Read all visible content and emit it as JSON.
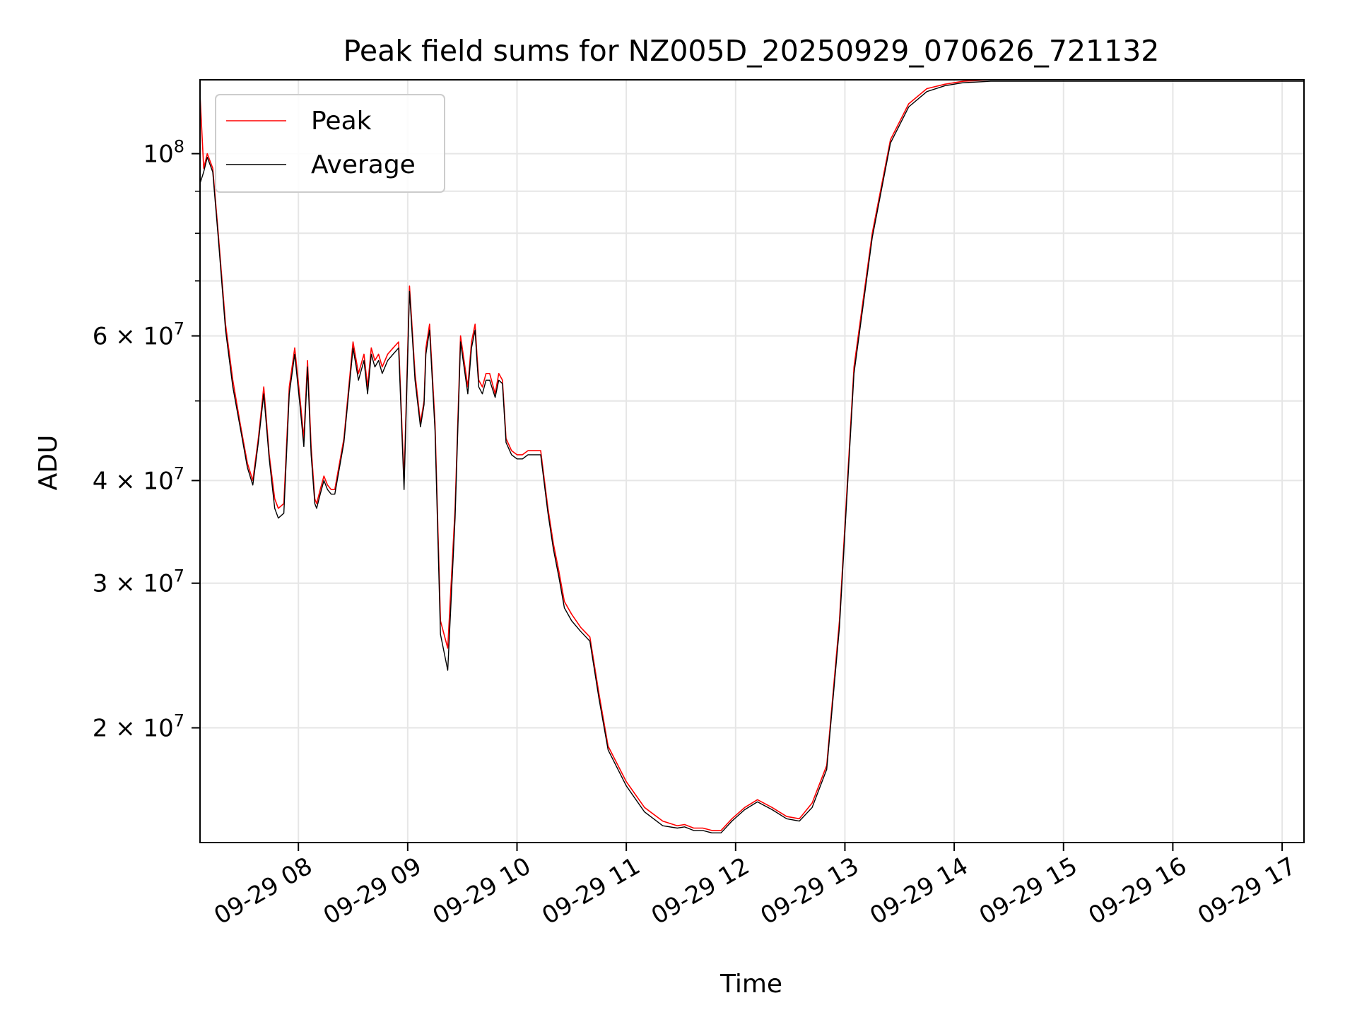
{
  "chart_data": {
    "type": "line",
    "title": "Peak field sums for NZ005D_20250929_070626_721132",
    "xlabel": "Time",
    "ylabel": "ADU",
    "x_scale": "time",
    "y_scale": "log",
    "xlim": [
      "2025-09-29 07:06",
      "2025-09-29 17:12"
    ],
    "ylim": [
      14500000,
      123000000
    ],
    "grid": true,
    "legend_position": "upper left",
    "x_ticks": [
      {
        "value": "2025-09-29 08:00",
        "label": "09-29 08"
      },
      {
        "value": "2025-09-29 09:00",
        "label": "09-29 09"
      },
      {
        "value": "2025-09-29 10:00",
        "label": "09-29 10"
      },
      {
        "value": "2025-09-29 11:00",
        "label": "09-29 11"
      },
      {
        "value": "2025-09-29 12:00",
        "label": "09-29 12"
      },
      {
        "value": "2025-09-29 13:00",
        "label": "09-29 13"
      },
      {
        "value": "2025-09-29 14:00",
        "label": "09-29 14"
      },
      {
        "value": "2025-09-29 15:00",
        "label": "09-29 15"
      },
      {
        "value": "2025-09-29 16:00",
        "label": "09-29 16"
      },
      {
        "value": "2025-09-29 17:00",
        "label": "09-29 17"
      }
    ],
    "y_major_ticks": [
      {
        "value": 100000000,
        "base": "10",
        "exp": "8"
      },
      {
        "value": 60000000,
        "base": "6 × 10",
        "exp": "7"
      },
      {
        "value": 40000000,
        "base": "4 × 10",
        "exp": "7"
      },
      {
        "value": 30000000,
        "base": "3 × 10",
        "exp": "7"
      },
      {
        "value": 20000000,
        "base": "2 × 10",
        "exp": "7"
      }
    ],
    "y_minor_ticks": [
      90000000,
      80000000,
      70000000,
      50000000
    ],
    "series": [
      {
        "name": "Peak",
        "color": "#ff0000",
        "x": [
          "07:06",
          "07:08",
          "07:10",
          "07:13",
          "07:16",
          "07:20",
          "07:24",
          "07:28",
          "07:32",
          "07:35",
          "07:38",
          "07:41",
          "07:44",
          "07:47",
          "07:49",
          "07:52",
          "07:55",
          "07:58",
          "08:01",
          "08:03",
          "08:05",
          "08:07",
          "08:09",
          "08:10",
          "08:12",
          "08:14",
          "08:16",
          "08:18",
          "08:20",
          "08:25",
          "08:30",
          "08:33",
          "08:36",
          "08:38",
          "08:40",
          "08:42",
          "08:44",
          "08:46",
          "08:49",
          "08:52",
          "08:55",
          "08:58",
          "09:01",
          "09:04",
          "09:07",
          "09:09",
          "09:10",
          "09:12",
          "09:15",
          "09:18",
          "09:22",
          "09:26",
          "09:29",
          "09:33",
          "09:35",
          "09:37",
          "09:38",
          "09:39",
          "09:41",
          "09:43",
          "09:45",
          "09:48",
          "09:50",
          "09:52",
          "09:54",
          "09:57",
          "10:00",
          "10:03",
          "10:06",
          "10:09",
          "10:13",
          "10:17",
          "10:20",
          "10:23",
          "10:26",
          "10:30",
          "10:35",
          "10:40",
          "10:45",
          "10:50",
          "11:00",
          "11:10",
          "11:20",
          "11:28",
          "11:32",
          "11:37",
          "11:42",
          "11:47",
          "11:52",
          "11:58",
          "12:05",
          "12:12",
          "12:20",
          "12:28",
          "12:35",
          "12:42",
          "12:50",
          "12:57",
          "13:05",
          "13:15",
          "13:25",
          "13:35",
          "13:45",
          "13:55",
          "14:05",
          "14:20",
          "14:35",
          "14:50",
          "15:00",
          "15:10",
          "15:20",
          "15:30",
          "15:40",
          "15:50",
          "16:00",
          "16:10",
          "16:20",
          "16:30",
          "16:40",
          "16:45",
          "16:50",
          "16:55",
          "17:00",
          "17:05",
          "17:12"
        ],
        "values": [
          118000000,
          96000000,
          100000000,
          96000000,
          80000000,
          62000000,
          53000000,
          47000000,
          42000000,
          40000000,
          45000000,
          52000000,
          43000000,
          38000000,
          37000000,
          37500000,
          52000000,
          58000000,
          50000000,
          45000000,
          56000000,
          44000000,
          38000000,
          37500000,
          39000000,
          40500000,
          39500000,
          39000000,
          39000000,
          45000000,
          59000000,
          54000000,
          57000000,
          52000000,
          58000000,
          56000000,
          57000000,
          55000000,
          57000000,
          58000000,
          59000000,
          40000000,
          69000000,
          54000000,
          47000000,
          50000000,
          58000000,
          62000000,
          47000000,
          27000000,
          25000000,
          37000000,
          60000000,
          52000000,
          59000000,
          62000000,
          57000000,
          53000000,
          52000000,
          54000000,
          54000000,
          51000000,
          54000000,
          53000000,
          45000000,
          43500000,
          43000000,
          43000000,
          43500000,
          43500000,
          43500000,
          37000000,
          33500000,
          31000000,
          28500000,
          27500000,
          26500000,
          25800000,
          22000000,
          19000000,
          17200000,
          16000000,
          15400000,
          15200000,
          15250000,
          15100000,
          15100000,
          15000000,
          15000000,
          15500000,
          16000000,
          16350000,
          16000000,
          15600000,
          15500000,
          16200000,
          18000000,
          27000000,
          55000000,
          80000000,
          104000000,
          115000000,
          120000000,
          121500000,
          122500000,
          123000000,
          123000000,
          123000000,
          123000000,
          123000000,
          123000000,
          123000000,
          123000000,
          123000000,
          123000000,
          123000000,
          123000000,
          123000000,
          123000000,
          123000000,
          123000000,
          123000000,
          123000000,
          123000000,
          123000000
        ],
        "values_note": ""
      },
      {
        "name": "Average",
        "color": "#000000",
        "x": [
          "07:06",
          "07:08",
          "07:10",
          "07:13",
          "07:16",
          "07:20",
          "07:24",
          "07:28",
          "07:32",
          "07:35",
          "07:38",
          "07:41",
          "07:44",
          "07:47",
          "07:49",
          "07:52",
          "07:55",
          "07:58",
          "08:01",
          "08:03",
          "08:05",
          "08:07",
          "08:09",
          "08:10",
          "08:12",
          "08:14",
          "08:16",
          "08:18",
          "08:20",
          "08:25",
          "08:30",
          "08:33",
          "08:36",
          "08:38",
          "08:40",
          "08:42",
          "08:44",
          "08:46",
          "08:49",
          "08:52",
          "08:55",
          "08:58",
          "09:01",
          "09:04",
          "09:07",
          "09:09",
          "09:10",
          "09:12",
          "09:15",
          "09:18",
          "09:22",
          "09:26",
          "09:29",
          "09:33",
          "09:35",
          "09:37",
          "09:38",
          "09:39",
          "09:41",
          "09:43",
          "09:45",
          "09:48",
          "09:50",
          "09:52",
          "09:54",
          "09:57",
          "10:00",
          "10:03",
          "10:06",
          "10:09",
          "10:13",
          "10:17",
          "10:20",
          "10:23",
          "10:26",
          "10:30",
          "10:35",
          "10:40",
          "10:45",
          "10:50",
          "11:00",
          "11:10",
          "11:20",
          "11:28",
          "11:32",
          "11:37",
          "11:42",
          "11:47",
          "11:52",
          "11:58",
          "12:05",
          "12:12",
          "12:20",
          "12:28",
          "12:35",
          "12:42",
          "12:50",
          "12:57",
          "13:05",
          "13:15",
          "13:25",
          "13:35",
          "13:45",
          "13:55",
          "14:05",
          "14:20",
          "14:35",
          "14:50",
          "15:00",
          "15:10",
          "15:20",
          "15:30",
          "15:40",
          "15:50",
          "16:00",
          "16:10",
          "16:20",
          "16:30",
          "16:40",
          "16:45",
          "16:50",
          "16:55",
          "17:00",
          "17:05",
          "17:12"
        ],
        "values": [
          92000000,
          95000000,
          99000000,
          95000000,
          79000000,
          61000000,
          52000000,
          46500000,
          41500000,
          39500000,
          44500000,
          51000000,
          42500000,
          37000000,
          36000000,
          36500000,
          51000000,
          57000000,
          49000000,
          44000000,
          55000000,
          43000000,
          37500000,
          37000000,
          38500000,
          40000000,
          39000000,
          38500000,
          38500000,
          44500000,
          58000000,
          53000000,
          56000000,
          51000000,
          57000000,
          55000000,
          56000000,
          54000000,
          56000000,
          57000000,
          58000000,
          39000000,
          68000000,
          53000000,
          46500000,
          49500000,
          57000000,
          61000000,
          46000000,
          26000000,
          23500000,
          36000000,
          59000000,
          51000000,
          58000000,
          61000000,
          56000000,
          52000000,
          51000000,
          53000000,
          53000000,
          50500000,
          53000000,
          52500000,
          44500000,
          43000000,
          42500000,
          42500000,
          43000000,
          43000000,
          43000000,
          36500000,
          33000000,
          30500000,
          28000000,
          27000000,
          26200000,
          25500000,
          21700000,
          18800000,
          17000000,
          15800000,
          15200000,
          15100000,
          15150000,
          15000000,
          15000000,
          14900000,
          14900000,
          15400000,
          15900000,
          16250000,
          15900000,
          15500000,
          15400000,
          16000000,
          17800000,
          26500000,
          54000000,
          79000000,
          103000000,
          114000000,
          119000000,
          121000000,
          122000000,
          122500000,
          122500000,
          122500000,
          122500000,
          122500000,
          122500000,
          122500000,
          122500000,
          122500000,
          122500000,
          122500000,
          122500000,
          122500000,
          122500000,
          122500000,
          122500000,
          122500000,
          122500000,
          122500000,
          122500000
        ]
      }
    ]
  }
}
